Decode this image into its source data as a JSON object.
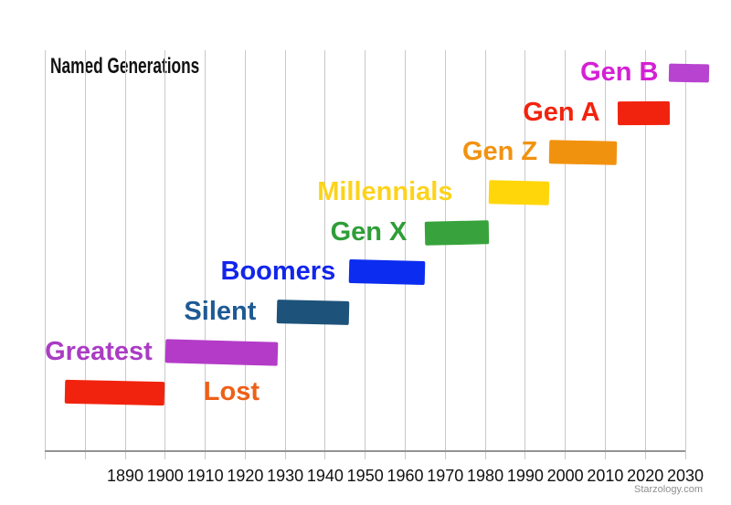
{
  "title": "Named Generations",
  "watermark": "Starzology.com",
  "chart_data": {
    "type": "bar",
    "title": "Named Generations",
    "orientation": "horizontal-timeline",
    "x_axis": {
      "min": 1870,
      "max": 2030,
      "gridline_step": 10,
      "tick_labels": [
        "1890",
        "1900",
        "1910",
        "1920",
        "1930",
        "1940",
        "1950",
        "1960",
        "1970",
        "1980",
        "1990",
        "2000",
        "2010",
        "2020",
        "2030"
      ]
    },
    "grid": true,
    "series": [
      {
        "name": "Lost",
        "start": 1875,
        "end": 1900,
        "bar_color": "#f1230e",
        "label_color": "#ee5f17",
        "label_side": "right"
      },
      {
        "name": "Greatest",
        "start": 1900,
        "end": 1928,
        "bar_color": "#b43bc8",
        "label_color": "#aa3cc3",
        "label_side": "left"
      },
      {
        "name": "Silent",
        "start": 1928,
        "end": 1946,
        "bar_color": "#1d527a",
        "label_color": "#1e5a94",
        "label_side": "left"
      },
      {
        "name": "Boomers",
        "start": 1946,
        "end": 1965,
        "bar_color": "#0c2cf0",
        "label_color": "#1225ec",
        "label_side": "left"
      },
      {
        "name": "Gen X",
        "start": 1965,
        "end": 1981,
        "bar_color": "#38a33c",
        "label_color": "#2f9e38",
        "label_side": "left"
      },
      {
        "name": "Millennials",
        "start": 1981,
        "end": 1996,
        "bar_color": "#ffd60a",
        "label_color": "#fdd31b",
        "label_side": "left"
      },
      {
        "name": "Gen Z",
        "start": 1996,
        "end": 2013,
        "bar_color": "#f1920f",
        "label_color": "#f1920f",
        "label_side": "left"
      },
      {
        "name": "Gen A",
        "start": 2013,
        "end": 2026,
        "bar_color": "#f1230e",
        "label_color": "#f1230e",
        "label_side": "left"
      },
      {
        "name": "Gen B",
        "start": 2026,
        "end": 2036,
        "bar_color": "#b843d0",
        "label_color": "#d420d4",
        "label_side": "left"
      }
    ],
    "colors": {
      "gridline": "#c9c9c9",
      "axis_line": "#939393",
      "tick_text": "#111111",
      "title_text": "#111111",
      "watermark_text": "#8f8f8f"
    }
  }
}
